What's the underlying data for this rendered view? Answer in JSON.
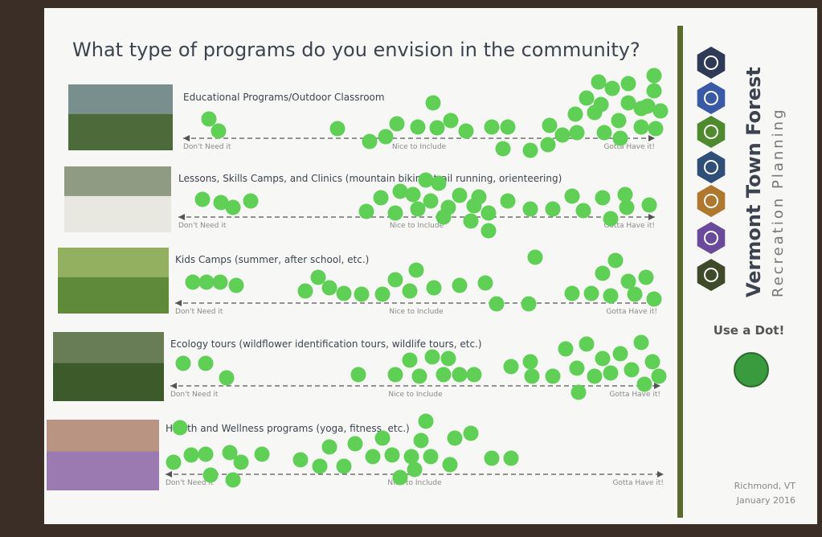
{
  "title": "What type of programs do you envision in the community?",
  "programs": [
    {
      "label": "Educational Programs/Outdoor Classroom",
      "scale": [
        "Don't Need it",
        "Nice to Include",
        "Gotta Have it!"
      ]
    },
    {
      "label": "Lessons, Skills Camps, and Clinics (mountain biking, trail running, orienteering)",
      "scale": [
        "Don't Need it",
        "Nice to Include",
        "Gotta Have it!"
      ]
    },
    {
      "label": "Kids Camps (summer, after school, etc.)",
      "scale": [
        "Don't Need it",
        "Nice to Include",
        "Gotta Have it!"
      ]
    },
    {
      "label": "Ecology tours (wildflower identification tours, wildlife tours, etc.)",
      "scale": [
        "Don't Need it",
        "Nice to Include",
        "Gotta Have it!"
      ]
    },
    {
      "label": "Health and Wellness programs (yoga, fitness, etc.)",
      "scale": [
        "Don't Need it",
        "Nice to Include",
        "Gotta Have it!"
      ]
    }
  ],
  "sidebar": {
    "name": "Vermont Town Forest",
    "subtitle": "Recreation Planning",
    "call_to_action": "Use a Dot!",
    "location": "Richmond, VT",
    "date": "January 2016"
  }
}
